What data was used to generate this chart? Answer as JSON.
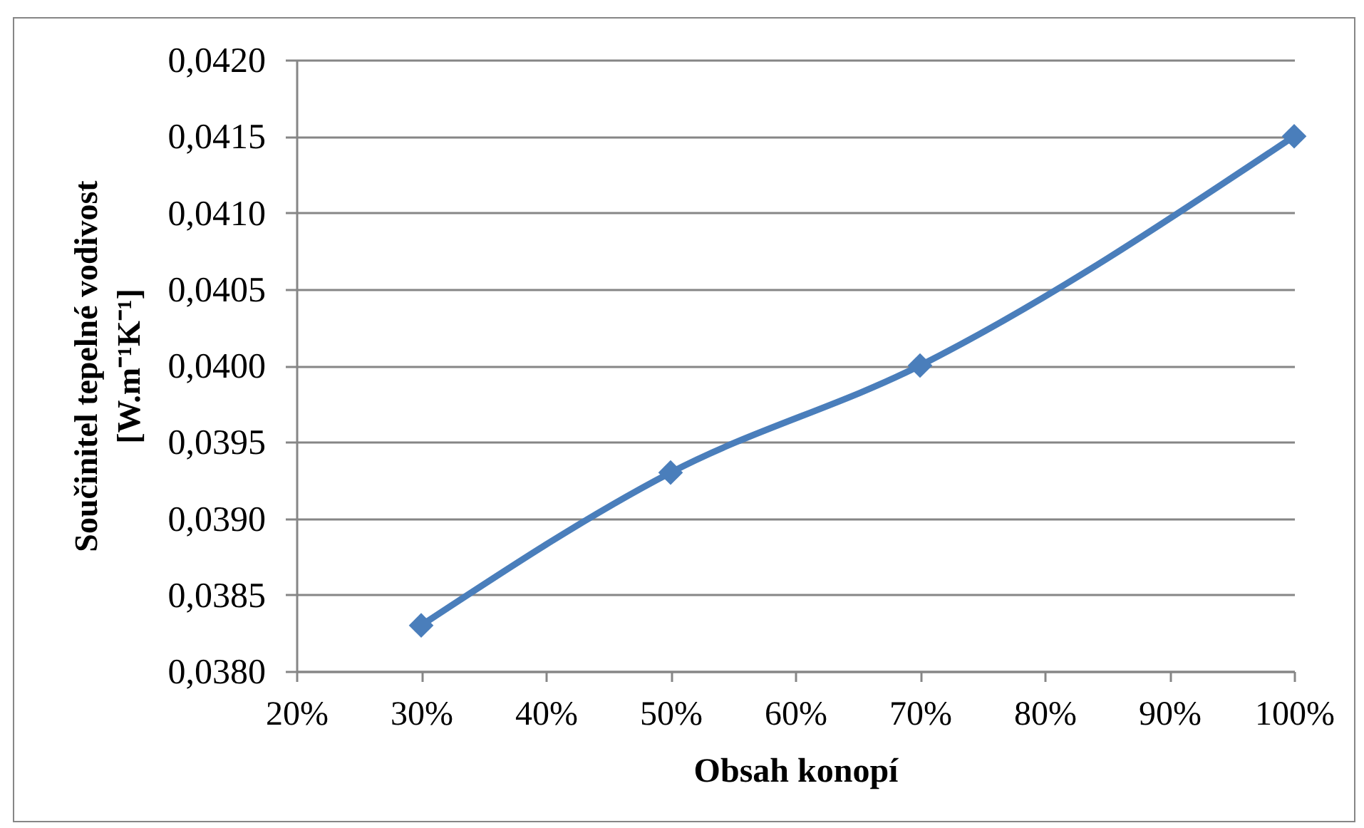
{
  "chart_data": {
    "type": "line",
    "xlabel": "Obsah konopí",
    "ylabel": "Součinitel tepelné vodivost [W.m⁻¹K⁻¹]",
    "x": [
      30,
      50,
      70,
      100
    ],
    "values": [
      0.0383,
      0.0393,
      0.04,
      0.0415
    ],
    "color": "#4a7ebb",
    "xlim": [
      20,
      100
    ],
    "xticks": [
      {
        "value": 20,
        "label": "20%"
      },
      {
        "value": 30,
        "label": "30%"
      },
      {
        "value": 40,
        "label": "40%"
      },
      {
        "value": 50,
        "label": "50%"
      },
      {
        "value": 60,
        "label": "60%"
      },
      {
        "value": 70,
        "label": "70%"
      },
      {
        "value": 80,
        "label": "80%"
      },
      {
        "value": 90,
        "label": "90%"
      },
      {
        "value": 100,
        "label": "100%"
      }
    ],
    "ylim": [
      0.038,
      0.042
    ],
    "yticks": [
      {
        "value": 0.038,
        "label": "0,0380"
      },
      {
        "value": 0.0385,
        "label": "0,0385"
      },
      {
        "value": 0.039,
        "label": "0,0390"
      },
      {
        "value": 0.0395,
        "label": "0,0395"
      },
      {
        "value": 0.04,
        "label": "0,0400"
      },
      {
        "value": 0.0405,
        "label": "0,0405"
      },
      {
        "value": 0.041,
        "label": "0,0410"
      },
      {
        "value": 0.0415,
        "label": "0,0415"
      },
      {
        "value": 0.042,
        "label": "0,0420"
      }
    ],
    "grid": "y",
    "marker": "diamond",
    "line_style": "solid"
  }
}
